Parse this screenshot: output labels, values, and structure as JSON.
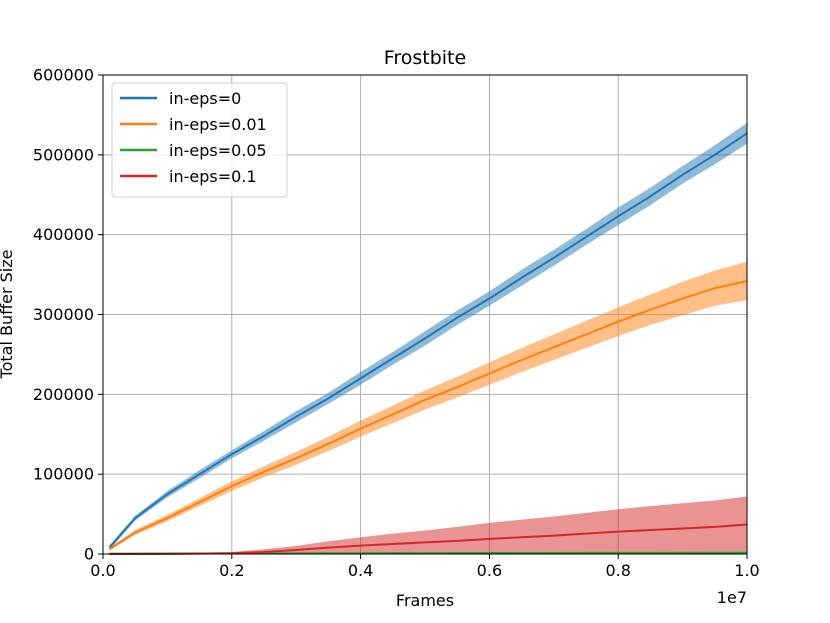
{
  "chart_data": {
    "type": "line",
    "title": "Frostbite",
    "xlabel": "Frames",
    "ylabel": "Total Buffer Size",
    "x_offset_label": "1e7",
    "xlim": [
      0,
      1.0
    ],
    "ylim": [
      0,
      600000
    ],
    "xticks": [
      "0.0",
      "0.2",
      "0.4",
      "0.6",
      "0.8",
      "1.0"
    ],
    "yticks": [
      "0",
      "100000",
      "200000",
      "300000",
      "400000",
      "500000",
      "600000"
    ],
    "grid": true,
    "legend_position": "top-left",
    "series": [
      {
        "name": "in-eps=0",
        "color": "#1f77b4",
        "x": [
          0.01,
          0.05,
          0.1,
          0.15,
          0.2,
          0.25,
          0.3,
          0.35,
          0.4,
          0.45,
          0.5,
          0.55,
          0.6,
          0.65,
          0.7,
          0.75,
          0.8,
          0.85,
          0.9,
          0.95,
          1.0
        ],
        "y": [
          8000,
          45000,
          75000,
          100000,
          125000,
          148000,
          172000,
          195000,
          220000,
          245000,
          270000,
          296000,
          320000,
          346000,
          371000,
          397000,
          423000,
          448000,
          475000,
          500000,
          527000
        ],
        "band": [
          3000,
          3000,
          4000,
          5000,
          5000,
          6000,
          7000,
          7000,
          8000,
          8000,
          9000,
          9000,
          9000,
          10000,
          10000,
          10000,
          11000,
          11000,
          11000,
          12000,
          13000
        ]
      },
      {
        "name": "in-eps=0.01",
        "color": "#ff7f0e",
        "x": [
          0.01,
          0.05,
          0.1,
          0.15,
          0.2,
          0.25,
          0.3,
          0.35,
          0.4,
          0.45,
          0.5,
          0.55,
          0.6,
          0.65,
          0.7,
          0.75,
          0.8,
          0.85,
          0.9,
          0.95,
          1.0
        ],
        "y": [
          6000,
          27000,
          45000,
          65000,
          85000,
          103000,
          120000,
          138000,
          157000,
          175000,
          193000,
          209000,
          226000,
          243000,
          259000,
          275000,
          291000,
          306000,
          320000,
          333000,
          342000
        ],
        "band": [
          2000,
          3000,
          4000,
          5000,
          6000,
          7000,
          8000,
          9000,
          10000,
          11000,
          12000,
          13000,
          14000,
          15000,
          16000,
          17000,
          18000,
          19000,
          21000,
          22000,
          24000
        ]
      },
      {
        "name": "in-eps=0.05",
        "color": "#2ca02c",
        "x": [
          0.01,
          0.2,
          0.4,
          0.6,
          0.8,
          1.0
        ],
        "y": [
          500,
          800,
          1000,
          1200,
          1400,
          1500
        ],
        "band": [
          300,
          300,
          300,
          300,
          300,
          300
        ]
      },
      {
        "name": "in-eps=0.1",
        "color": "#d62728",
        "x": [
          0.01,
          0.1,
          0.2,
          0.25,
          0.3,
          0.35,
          0.4,
          0.45,
          0.5,
          0.55,
          0.6,
          0.65,
          0.7,
          0.75,
          0.8,
          0.85,
          0.9,
          0.95,
          1.0
        ],
        "y": [
          0,
          200,
          1000,
          2500,
          5000,
          8000,
          10500,
          12500,
          14500,
          16500,
          19000,
          21000,
          23000,
          25500,
          28000,
          30000,
          32000,
          34000,
          37000
        ],
        "band": [
          0,
          300,
          1500,
          3500,
          5000,
          8000,
          10500,
          13000,
          15000,
          17500,
          20000,
          22000,
          24000,
          26000,
          28000,
          30000,
          31500,
          33000,
          35000
        ]
      }
    ]
  }
}
